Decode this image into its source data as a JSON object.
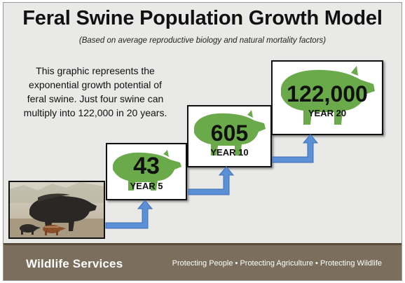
{
  "title": "Feral Swine Population Growth Model",
  "subtitle": "(Based on average reproductive biology and natural mortality factors)",
  "description": "This graphic represents the exponential growth potential of feral swine. Just four swine can multiply into 122,000 in 20 years.",
  "steps": [
    {
      "number": "43",
      "label": "YEAR 5"
    },
    {
      "number": "605",
      "label": "YEAR 10"
    },
    {
      "number": "122,000",
      "label": "YEAR 20"
    }
  ],
  "footer": {
    "org": "Wildlife Services",
    "tagline": "Protecting People • Protecting Agriculture • Protecting Wildlife"
  },
  "colors": {
    "pig_silhouette": "#6aaa4a",
    "arrow": "#5b8fd6",
    "footer": "#7c6e5c"
  }
}
